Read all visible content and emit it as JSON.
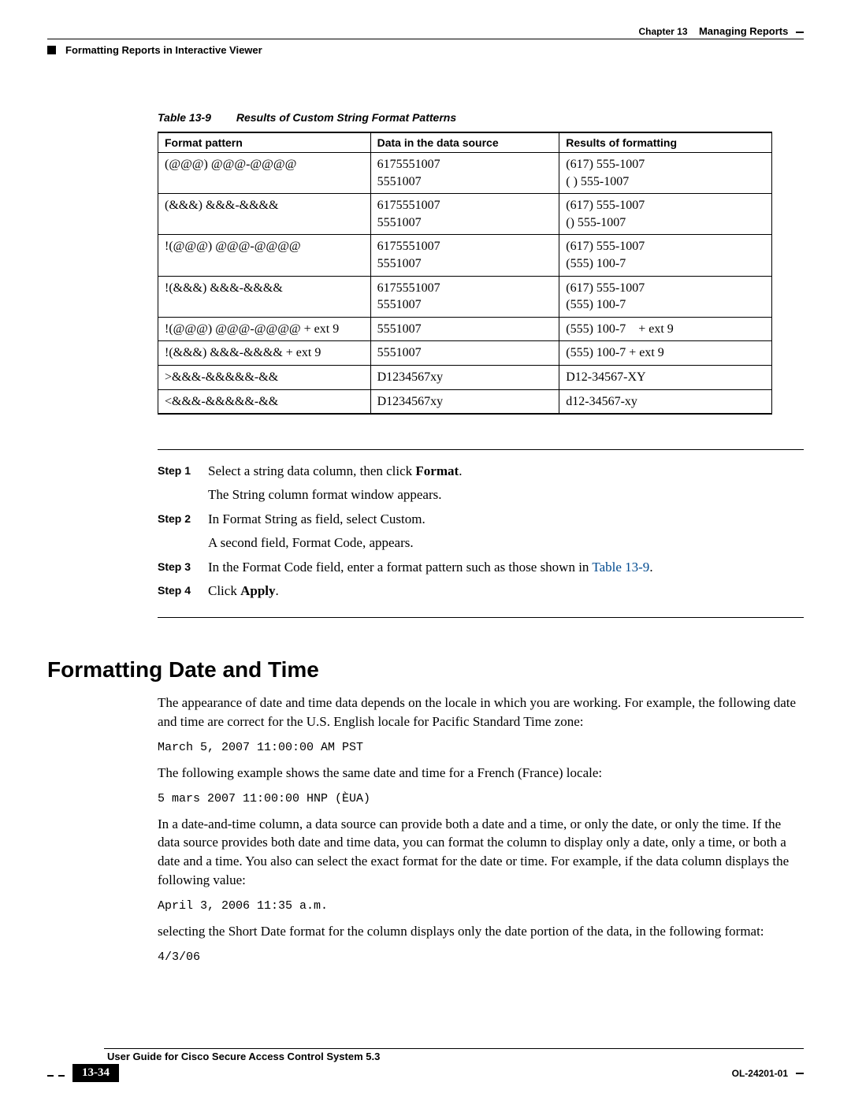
{
  "header": {
    "chapter_label": "Chapter 13",
    "chapter_title": "Managing Reports",
    "section_title": "Formatting Reports in Interactive Viewer"
  },
  "table": {
    "caption_num": "Table 13-9",
    "caption_text": "Results of Custom String Format Patterns",
    "columns": [
      "Format pattern",
      "Data in the data source",
      "Results of formatting"
    ],
    "rows": [
      {
        "c1": "(@@@) @@@-@@@@",
        "c2a": "6175551007",
        "c2b": "5551007",
        "c3a": "(617) 555-1007",
        "c3b": "(   ) 555-1007"
      },
      {
        "c1": "(&&&) &&&-&&&&",
        "c2a": "6175551007",
        "c2b": "5551007",
        "c3a": "(617) 555-1007",
        "c3b": "() 555-1007"
      },
      {
        "c1": "!(@@@) @@@-@@@@",
        "c2a": "6175551007",
        "c2b": "5551007",
        "c3a": "(617) 555-1007",
        "c3b": "(555) 100-7"
      },
      {
        "c1": "!(&&&) &&&-&&&&",
        "c2a": "6175551007",
        "c2b": "5551007",
        "c3a": "(617) 555-1007",
        "c3b": "(555) 100-7"
      },
      {
        "c1": "!(@@@) @@@-@@@@ + ext 9",
        "c2a": "5551007",
        "c3a": "(555) 100-7    + ext 9"
      },
      {
        "c1": "!(&&&) &&&-&&&& + ext 9",
        "c2a": "5551007",
        "c3a": "(555) 100-7 + ext 9"
      },
      {
        "c1": ">&&&-&&&&&-&&",
        "c2a": "D1234567xy",
        "c3a": "D12-34567-XY"
      },
      {
        "c1": "<&&&-&&&&&-&&",
        "c2a": "D1234567xy",
        "c3a": "d12-34567-xy"
      }
    ]
  },
  "steps": [
    {
      "label": "Step 1",
      "line1_pre": "Select a string data column, then click ",
      "line1_bold": "Format",
      "line1_post": ".",
      "line2": "The String column format window appears."
    },
    {
      "label": "Step 2",
      "line1": "In Format String as field, select Custom.",
      "line2": "A second field, Format Code, appears."
    },
    {
      "label": "Step 3",
      "line1_pre": "In the Format Code field, enter a format pattern such as those shown in ",
      "xref": "Table 13-9",
      "line1_post": "."
    },
    {
      "label": "Step 4",
      "line1_pre": "Click ",
      "line1_bold": "Apply",
      "line1_post": "."
    }
  ],
  "section2": {
    "heading": "Formatting Date and Time",
    "p1": "The appearance of date and time data depends on the locale in which you are working. For example, the following date and time are correct for the U.S. English locale for Pacific Standard Time zone:",
    "code1": "March 5, 2007 11:00:00 AM PST",
    "p2": "The following example shows the same date and time for a French (France) locale:",
    "code2": "5 mars 2007 11:00:00 HNP (ÈUA)",
    "p3": "In a date-and-time column, a data source can provide both a date and a time, or only the date, or only the time. If the data source provides both date and time data, you can format the column to display only a date, only a time, or both a date and a time. You also can select the exact format for the date or time. For example, if the data column displays the following value:",
    "code3": "April 3, 2006 11:35 a.m.",
    "p4": "selecting the Short Date format for the column displays only the date portion of the data, in the following format:",
    "code4": "4/3/06"
  },
  "footer": {
    "guide_title": "User Guide for Cisco Secure Access Control System 5.3",
    "page_number": "13-34",
    "doc_id": "OL-24201-01"
  }
}
